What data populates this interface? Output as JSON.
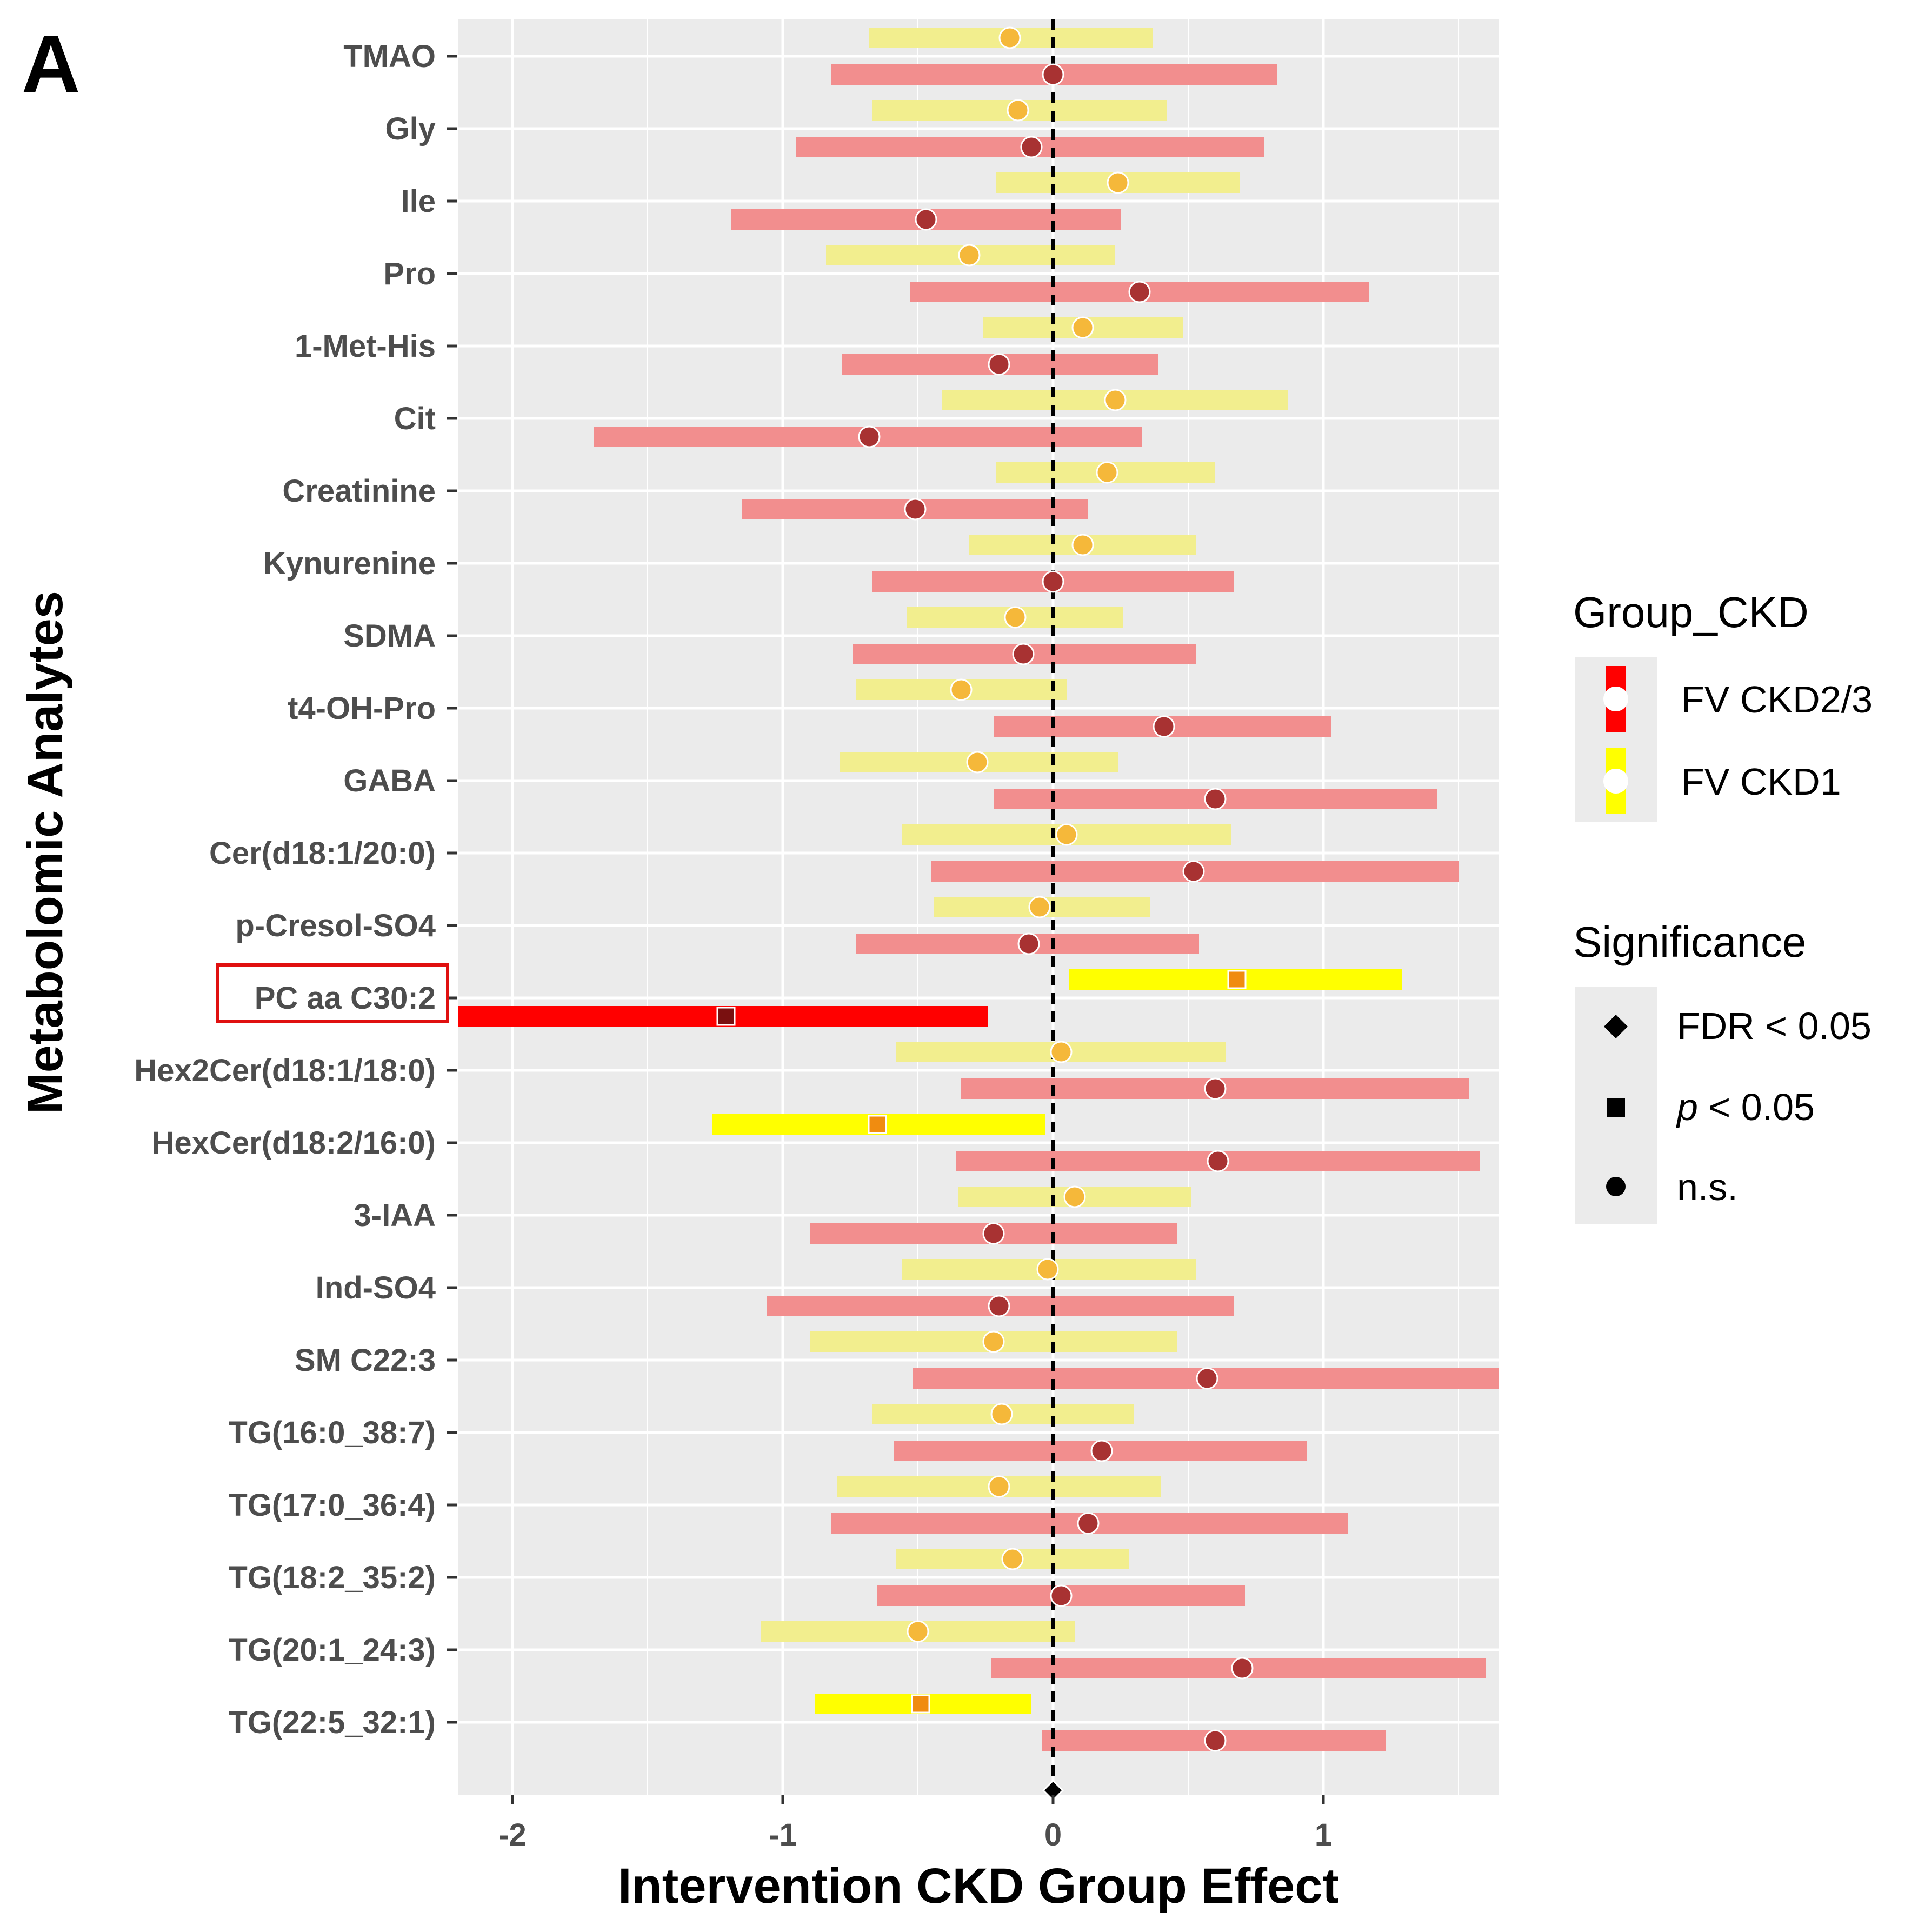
{
  "chart_data": {
    "type": "forest",
    "panel_label": "A",
    "xlabel": "Intervention CKD Group Effect",
    "ylabel": "Metabolomic Analytes",
    "xlim": [
      -2.2,
      1.65
    ],
    "x_ticks": [
      -2,
      -1,
      0,
      1
    ],
    "x_tick_labels": [
      "-2",
      "-1",
      "0",
      "1"
    ],
    "reference_line": 0,
    "highlighted_label": "PC aa C30:2",
    "colors": {
      "panel_bg": "#ebebeb",
      "grid": "#ffffff",
      "ckd23_bar_ns": "#f28e8e",
      "ckd23_bar_sig": "#ff0000",
      "ckd23_point_ns": "#a83232",
      "ckd23_point_sig": "#7a1010",
      "ckd1_bar_ns": "#f2ee8e",
      "ckd1_bar_sig": "#ffff00",
      "ckd1_point_ns": "#f5b83a",
      "ckd1_point_sig": "#f08c10",
      "highlight_box": "#e01010"
    },
    "categories": [
      "TMAO",
      "Gly",
      "Ile",
      "Pro",
      "1-Met-His",
      "Cit",
      "Creatinine",
      "Kynurenine",
      "SDMA",
      "t4-OH-Pro",
      "GABA",
      "Cer(d18:1/20:0)",
      "p-Cresol-SO4",
      "PC aa C30:2",
      "Hex2Cer(d18:1/18:0)",
      "HexCer(d18:2/16:0)",
      "3-IAA",
      "Ind-SO4",
      "SM C22:3",
      "TG(16:0_38:7)",
      "TG(17:0_36:4)",
      "TG(18:2_35:2)",
      "TG(20:1_24:3)",
      "TG(22:5_32:1)"
    ],
    "series": [
      {
        "name": "FV CKD1",
        "estimates": [
          -0.16,
          -0.13,
          0.24,
          -0.31,
          0.11,
          0.23,
          0.2,
          0.11,
          -0.14,
          -0.34,
          -0.28,
          0.05,
          -0.05,
          0.68,
          0.03,
          -0.65,
          0.08,
          -0.02,
          -0.22,
          -0.19,
          -0.2,
          -0.15,
          -0.5,
          -0.49
        ],
        "lower": [
          -0.68,
          -0.67,
          -0.21,
          -0.84,
          -0.26,
          -0.41,
          -0.21,
          -0.31,
          -0.54,
          -0.73,
          -0.79,
          -0.56,
          -0.44,
          0.06,
          -0.58,
          -1.26,
          -0.35,
          -0.56,
          -0.9,
          -0.67,
          -0.8,
          -0.58,
          -1.08,
          -0.88
        ],
        "upper": [
          0.37,
          0.42,
          0.69,
          0.23,
          0.48,
          0.87,
          0.6,
          0.53,
          0.26,
          0.05,
          0.24,
          0.66,
          0.36,
          1.29,
          0.64,
          -0.03,
          0.51,
          0.53,
          0.46,
          0.3,
          0.4,
          0.28,
          0.08,
          -0.08
        ],
        "significance": [
          "n.s.",
          "n.s.",
          "n.s.",
          "n.s.",
          "n.s.",
          "n.s.",
          "n.s.",
          "n.s.",
          "n.s.",
          "n.s.",
          "n.s.",
          "n.s.",
          "n.s.",
          "p < 0.05",
          "n.s.",
          "p < 0.05",
          "n.s.",
          "n.s.",
          "n.s.",
          "n.s.",
          "n.s.",
          "n.s.",
          "n.s.",
          "p < 0.05"
        ]
      },
      {
        "name": "FV CKD2/3",
        "estimates": [
          0,
          -0.08,
          -0.47,
          0.32,
          -0.2,
          -0.68,
          -0.51,
          0,
          -0.11,
          0.41,
          0.6,
          0.52,
          -0.09,
          -1.21,
          0.6,
          0.61,
          -0.22,
          -0.2,
          0.57,
          0.18,
          0.13,
          0.03,
          0.7,
          0.6
        ],
        "lower": [
          -0.82,
          -0.95,
          -1.19,
          -0.53,
          -0.78,
          -1.7,
          -1.15,
          -0.67,
          -0.74,
          -0.22,
          -0.22,
          -0.45,
          -0.73,
          -2.2,
          -0.34,
          -0.36,
          -0.9,
          -1.06,
          -0.52,
          -0.59,
          -0.82,
          -0.65,
          -0.23,
          -0.04
        ],
        "upper": [
          0.83,
          0.78,
          0.25,
          1.17,
          0.39,
          0.33,
          0.13,
          0.67,
          0.53,
          1.03,
          1.42,
          1.5,
          0.54,
          -0.24,
          1.54,
          1.58,
          0.46,
          0.67,
          1.65,
          0.94,
          1.09,
          0.71,
          1.6,
          1.23
        ],
        "significance": [
          "n.s.",
          "n.s.",
          "n.s.",
          "n.s.",
          "n.s.",
          "n.s.",
          "n.s.",
          "n.s.",
          "n.s.",
          "n.s.",
          "n.s.",
          "n.s.",
          "n.s.",
          "p < 0.05",
          "n.s.",
          "n.s.",
          "n.s.",
          "n.s.",
          "n.s.",
          "n.s.",
          "n.s.",
          "n.s.",
          "n.s.",
          "n.s."
        ]
      }
    ],
    "legend": {
      "group_title": "Group_CKD",
      "group_entries": [
        {
          "label": "FV CKD2/3",
          "color": "#ff0000"
        },
        {
          "label": "FV CKD1",
          "color": "#ffff00"
        }
      ],
      "significance_title": "Significance",
      "significance_entries": [
        {
          "label_prefix": "FDR < 0.05",
          "label_italic": "",
          "label_suffix": "",
          "shape": "diamond"
        },
        {
          "label_prefix": "",
          "label_italic": "p",
          "label_suffix": " < 0.05",
          "shape": "square"
        },
        {
          "label_prefix": "n.s.",
          "label_italic": "",
          "label_suffix": "",
          "shape": "circle"
        }
      ]
    }
  }
}
